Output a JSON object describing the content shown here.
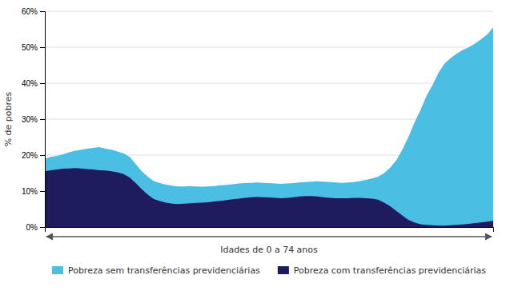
{
  "chart_data": {
    "type": "area",
    "xlabel": "Idades de 0 a 74 anos",
    "ylabel": "% de pobres",
    "x": [
      0,
      1,
      2,
      3,
      4,
      5,
      6,
      7,
      8,
      9,
      10,
      11,
      12,
      13,
      14,
      15,
      16,
      17,
      18,
      19,
      20,
      21,
      22,
      23,
      24,
      25,
      26,
      27,
      28,
      29,
      30,
      31,
      32,
      33,
      34,
      35,
      36,
      37,
      38,
      39,
      40,
      41,
      42,
      43,
      44,
      45,
      46,
      47,
      48,
      49,
      50,
      51,
      52,
      53,
      54,
      55,
      56,
      57,
      58,
      59,
      60,
      61,
      62,
      63,
      64,
      65,
      66,
      67,
      68,
      69,
      70,
      71,
      72,
      73,
      74
    ],
    "xlim": [
      0,
      74
    ],
    "ylim": [
      0,
      0.6
    ],
    "yticks": [
      {
        "value": 0.0,
        "label": "0%"
      },
      {
        "value": 0.1,
        "label": "10%"
      },
      {
        "value": 0.2,
        "label": "20%"
      },
      {
        "value": 0.3,
        "label": "30%"
      },
      {
        "value": 0.4,
        "label": "40%"
      },
      {
        "value": 0.5,
        "label": "50%"
      },
      {
        "value": 0.6,
        "label": "60%"
      }
    ],
    "grid": true,
    "legend": "bottom",
    "tick_labels": "y",
    "series": [
      {
        "name": "Pobreza sem transferências previdenciárias",
        "color": "#4BBEE3",
        "values": [
          0.19,
          0.195,
          0.198,
          0.202,
          0.208,
          0.212,
          0.215,
          0.218,
          0.22,
          0.222,
          0.218,
          0.215,
          0.21,
          0.205,
          0.195,
          0.175,
          0.155,
          0.14,
          0.128,
          0.122,
          0.118,
          0.115,
          0.113,
          0.113,
          0.114,
          0.113,
          0.112,
          0.113,
          0.114,
          0.116,
          0.117,
          0.119,
          0.121,
          0.122,
          0.123,
          0.124,
          0.123,
          0.122,
          0.121,
          0.12,
          0.121,
          0.122,
          0.124,
          0.125,
          0.126,
          0.127,
          0.126,
          0.125,
          0.124,
          0.123,
          0.124,
          0.125,
          0.128,
          0.131,
          0.135,
          0.14,
          0.15,
          0.165,
          0.185,
          0.215,
          0.25,
          0.29,
          0.325,
          0.365,
          0.395,
          0.43,
          0.455,
          0.47,
          0.482,
          0.492,
          0.5,
          0.51,
          0.522,
          0.535,
          0.555
        ]
      },
      {
        "name": "Pobreza com transferências previdenciárias",
        "color": "#1E1B5E",
        "values": [
          0.155,
          0.158,
          0.16,
          0.162,
          0.163,
          0.164,
          0.163,
          0.161,
          0.16,
          0.158,
          0.157,
          0.155,
          0.152,
          0.147,
          0.138,
          0.122,
          0.105,
          0.09,
          0.078,
          0.072,
          0.068,
          0.065,
          0.064,
          0.065,
          0.066,
          0.067,
          0.068,
          0.069,
          0.071,
          0.073,
          0.075,
          0.077,
          0.079,
          0.081,
          0.083,
          0.084,
          0.083,
          0.082,
          0.081,
          0.08,
          0.081,
          0.083,
          0.085,
          0.086,
          0.086,
          0.085,
          0.083,
          0.081,
          0.08,
          0.08,
          0.08,
          0.081,
          0.081,
          0.08,
          0.079,
          0.076,
          0.068,
          0.058,
          0.045,
          0.032,
          0.02,
          0.013,
          0.008,
          0.006,
          0.005,
          0.004,
          0.004,
          0.005,
          0.006,
          0.007,
          0.009,
          0.011,
          0.013,
          0.015,
          0.017
        ]
      }
    ]
  }
}
